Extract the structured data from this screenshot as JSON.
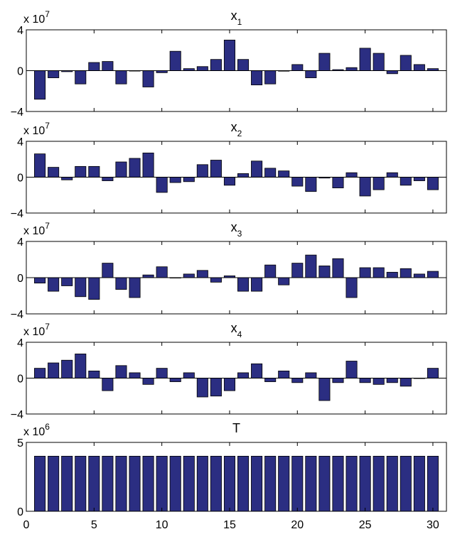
{
  "figure": {
    "bar_color": "#2b2e82",
    "edge_color": "#000000",
    "background": "#ffffff"
  },
  "chart_data": [
    {
      "type": "bar",
      "title": "x",
      "title_sub": "1",
      "scale_base": "x 10",
      "scale_exp": "7",
      "xlim": [
        0,
        31
      ],
      "ylim": [
        -4,
        4
      ],
      "yticks": [
        4,
        0,
        -4
      ],
      "ytick_labels": [
        "4",
        "0",
        "−4"
      ],
      "x": [
        1,
        2,
        3,
        4,
        5,
        6,
        7,
        8,
        9,
        10,
        11,
        12,
        13,
        14,
        15,
        16,
        17,
        18,
        19,
        20,
        21,
        22,
        23,
        24,
        25,
        26,
        27,
        28,
        29,
        30
      ],
      "values": [
        -2.8,
        -0.7,
        -0.1,
        -1.3,
        0.8,
        0.9,
        -1.3,
        0,
        -1.6,
        -0.2,
        1.9,
        0.2,
        0.4,
        1.1,
        3.0,
        1.1,
        -1.4,
        -1.3,
        -0.05,
        0.6,
        -0.7,
        1.7,
        0.1,
        0.3,
        2.2,
        1.7,
        -0.3,
        1.5,
        0.6,
        0.2
      ]
    },
    {
      "type": "bar",
      "title": "x",
      "title_sub": "2",
      "scale_base": "x 10",
      "scale_exp": "7",
      "xlim": [
        0,
        31
      ],
      "ylim": [
        -4,
        4
      ],
      "yticks": [
        4,
        0,
        -4
      ],
      "ytick_labels": [
        "4",
        "0",
        "−4"
      ],
      "x": [
        1,
        2,
        3,
        4,
        5,
        6,
        7,
        8,
        9,
        10,
        11,
        12,
        13,
        14,
        15,
        16,
        17,
        18,
        19,
        20,
        21,
        22,
        23,
        24,
        25,
        26,
        27,
        28,
        29,
        30
      ],
      "values": [
        2.6,
        1.1,
        -0.3,
        1.2,
        1.2,
        -0.4,
        1.7,
        2.1,
        2.7,
        -1.7,
        -0.6,
        -0.5,
        1.4,
        1.9,
        -0.9,
        0.4,
        1.8,
        1.0,
        0.7,
        -1.0,
        -1.6,
        -0.1,
        -1.2,
        0.5,
        -2.1,
        -1.4,
        0.5,
        -0.9,
        -0.4,
        -1.4
      ]
    },
    {
      "type": "bar",
      "title": "x",
      "title_sub": "3",
      "scale_base": "x 10",
      "scale_exp": "7",
      "xlim": [
        0,
        31
      ],
      "ylim": [
        -4,
        4
      ],
      "yticks": [
        4,
        0,
        -4
      ],
      "ytick_labels": [
        "4",
        "0",
        "−4"
      ],
      "x": [
        1,
        2,
        3,
        4,
        5,
        6,
        7,
        8,
        9,
        10,
        11,
        12,
        13,
        14,
        15,
        16,
        17,
        18,
        19,
        20,
        21,
        22,
        23,
        24,
        25,
        26,
        27,
        28,
        29,
        30
      ],
      "values": [
        -0.6,
        -1.5,
        -0.9,
        -2.1,
        -2.4,
        1.6,
        -1.3,
        -2.2,
        0.3,
        1.2,
        0,
        0.4,
        0.8,
        -0.5,
        0.2,
        -1.5,
        -1.5,
        1.4,
        -0.8,
        1.6,
        2.5,
        1.3,
        2.1,
        -2.2,
        1.1,
        1.1,
        0.6,
        1.0,
        0.4,
        0.7
      ]
    },
    {
      "type": "bar",
      "title": "x",
      "title_sub": "4",
      "scale_base": "x 10",
      "scale_exp": "7",
      "xlim": [
        0,
        31
      ],
      "ylim": [
        -4,
        4
      ],
      "yticks": [
        4,
        0,
        -4
      ],
      "ytick_labels": [
        "4",
        "0",
        "−4"
      ],
      "x": [
        1,
        2,
        3,
        4,
        5,
        6,
        7,
        8,
        9,
        10,
        11,
        12,
        13,
        14,
        15,
        16,
        17,
        18,
        19,
        20,
        21,
        22,
        23,
        24,
        25,
        26,
        27,
        28,
        29,
        30
      ],
      "values": [
        1.1,
        1.7,
        2.0,
        2.7,
        0.8,
        -1.4,
        1.4,
        0.6,
        -0.7,
        1.1,
        -0.4,
        0.6,
        -2.1,
        -2.0,
        -1.4,
        0.6,
        1.6,
        -0.4,
        0.8,
        -0.5,
        0.6,
        -2.5,
        -0.5,
        1.9,
        -0.5,
        -0.7,
        -0.5,
        -0.9,
        0,
        1.1
      ]
    },
    {
      "type": "bar",
      "title": "T",
      "title_sub": "",
      "scale_base": "x 10",
      "scale_exp": "6",
      "xlim": [
        0,
        31
      ],
      "ylim": [
        0,
        5
      ],
      "yticks": [
        5,
        0
      ],
      "ytick_labels": [
        "5",
        "0"
      ],
      "xticks": [
        0,
        5,
        10,
        15,
        20,
        25,
        30
      ],
      "xtick_labels": [
        "0",
        "5",
        "10",
        "15",
        "20",
        "25",
        "30"
      ],
      "x": [
        1,
        2,
        3,
        4,
        5,
        6,
        7,
        8,
        9,
        10,
        11,
        12,
        13,
        14,
        15,
        16,
        17,
        18,
        19,
        20,
        21,
        22,
        23,
        24,
        25,
        26,
        27,
        28,
        29,
        30
      ],
      "values": [
        4,
        4,
        4,
        4,
        4,
        4,
        4,
        4,
        4,
        4,
        4,
        4,
        4,
        4,
        4,
        4,
        4,
        4,
        4,
        4,
        4,
        4,
        4,
        4,
        4,
        4,
        4,
        4,
        4,
        4
      ]
    }
  ]
}
